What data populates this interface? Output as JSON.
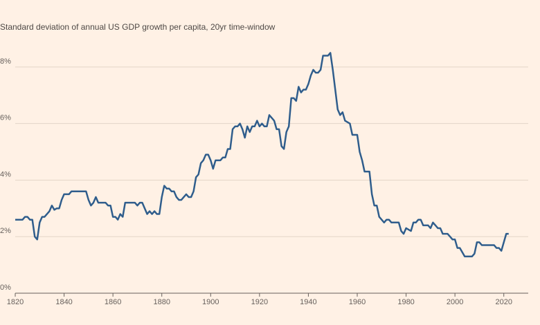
{
  "chart_data": {
    "type": "line",
    "title": "Standard deviation of annual US GDP growth per capita, 20yr time-window",
    "x": [
      1820,
      1823,
      1824,
      1825,
      1826,
      1827,
      1828,
      1829,
      1830,
      1831,
      1832,
      1834,
      1835,
      1836,
      1837,
      1838,
      1839,
      1840,
      1842,
      1843,
      1849,
      1850,
      1851,
      1852,
      1853,
      1854,
      1857,
      1858,
      1859,
      1860,
      1861,
      1862,
      1863,
      1864,
      1865,
      1869,
      1870,
      1871,
      1872,
      1873,
      1874,
      1875,
      1876,
      1877,
      1878,
      1879,
      1880,
      1881,
      1882,
      1883,
      1884,
      1885,
      1886,
      1887,
      1888,
      1889,
      1890,
      1891,
      1892,
      1893,
      1894,
      1895,
      1896,
      1897,
      1898,
      1899,
      1900,
      1901,
      1902,
      1904,
      1905,
      1906,
      1907,
      1908,
      1909,
      1910,
      1911,
      1912,
      1913,
      1914,
      1915,
      1916,
      1917,
      1918,
      1919,
      1920,
      1921,
      1922,
      1923,
      1924,
      1925,
      1926,
      1927,
      1928,
      1929,
      1930,
      1931,
      1932,
      1933,
      1934,
      1935,
      1936,
      1937,
      1938,
      1939,
      1940,
      1941,
      1942,
      1943,
      1944,
      1945,
      1946,
      1948,
      1949,
      1950,
      1952,
      1953,
      1954,
      1955,
      1957,
      1958,
      1960,
      1961,
      1962,
      1963,
      1965,
      1966,
      1967,
      1968,
      1969,
      1970,
      1971,
      1972,
      1973,
      1974,
      1977,
      1978,
      1979,
      1980,
      1982,
      1983,
      1984,
      1985,
      1986,
      1987,
      1989,
      1990,
      1991,
      1992,
      1993,
      1994,
      1995,
      1997,
      1998,
      1999,
      2000,
      2001,
      2002,
      2004,
      2007,
      2008,
      2009,
      2010,
      2011,
      2016,
      2017,
      2018,
      2019,
      2021,
      2022
    ],
    "series": [
      {
        "color": "#2f5d8c",
        "values": [
          2.6,
          2.6,
          2.7,
          2.7,
          2.6,
          2.6,
          2.0,
          1.9,
          2.5,
          2.7,
          2.7,
          2.9,
          3.1,
          2.95,
          3.0,
          3.0,
          3.3,
          3.5,
          3.5,
          3.6,
          3.6,
          3.3,
          3.1,
          3.2,
          3.4,
          3.2,
          3.2,
          3.1,
          3.1,
          2.7,
          2.7,
          2.6,
          2.8,
          2.7,
          3.2,
          3.2,
          3.1,
          3.2,
          3.2,
          3.0,
          2.8,
          2.9,
          2.8,
          2.9,
          2.8,
          2.8,
          3.4,
          3.8,
          3.7,
          3.7,
          3.6,
          3.6,
          3.4,
          3.3,
          3.3,
          3.4,
          3.5,
          3.4,
          3.4,
          3.6,
          4.1,
          4.2,
          4.6,
          4.7,
          4.9,
          4.9,
          4.7,
          4.4,
          4.7,
          4.7,
          4.8,
          4.8,
          5.1,
          5.1,
          5.8,
          5.9,
          5.9,
          6.0,
          5.8,
          5.5,
          5.9,
          5.7,
          5.9,
          5.9,
          6.1,
          5.9,
          6.0,
          5.9,
          5.9,
          6.3,
          6.2,
          6.1,
          5.8,
          5.8,
          5.2,
          5.1,
          5.7,
          5.9,
          6.9,
          6.9,
          6.8,
          7.3,
          7.1,
          7.2,
          7.2,
          7.4,
          7.7,
          7.9,
          7.8,
          7.8,
          7.9,
          8.4,
          8.4,
          8.5,
          7.9,
          6.5,
          6.3,
          6.4,
          6.1,
          6.0,
          5.6,
          5.6,
          5.0,
          4.7,
          4.3,
          4.3,
          3.5,
          3.1,
          3.1,
          2.7,
          2.6,
          2.5,
          2.6,
          2.6,
          2.5,
          2.5,
          2.2,
          2.1,
          2.3,
          2.2,
          2.5,
          2.5,
          2.6,
          2.6,
          2.4,
          2.4,
          2.3,
          2.5,
          2.4,
          2.3,
          2.3,
          2.1,
          2.1,
          2.0,
          1.9,
          1.9,
          1.6,
          1.6,
          1.3,
          1.3,
          1.4,
          1.8,
          1.8,
          1.7,
          1.7,
          1.6,
          1.6,
          1.5,
          2.1,
          2.1
        ]
      }
    ],
    "xlim": [
      1820,
      2030
    ],
    "xticks": [
      1820,
      1840,
      1860,
      1880,
      1900,
      1920,
      1940,
      1960,
      1980,
      2000,
      2020
    ],
    "ylim": [
      0,
      9
    ],
    "yticks": [
      {
        "value": 0,
        "label": "0%"
      },
      {
        "value": 2,
        "label": "2%"
      },
      {
        "value": 4,
        "label": "4%"
      },
      {
        "value": 6,
        "label": "6%"
      },
      {
        "value": 8,
        "label": "8%"
      }
    ],
    "grid": true
  }
}
